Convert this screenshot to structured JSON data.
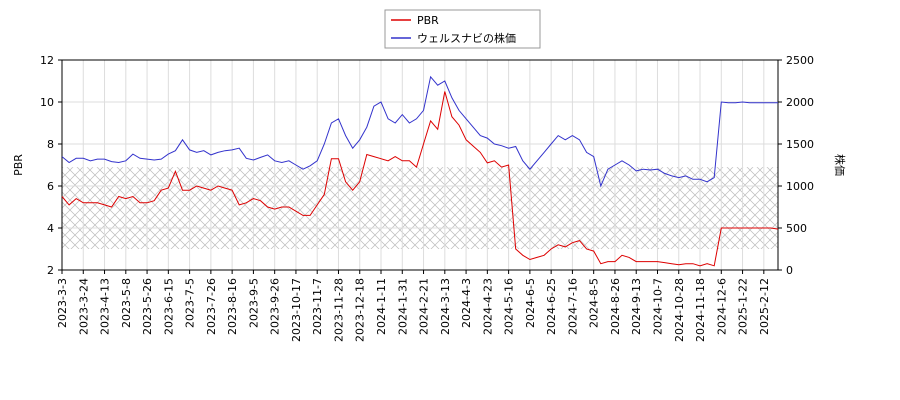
{
  "chart_data": {
    "type": "line",
    "xlim": [
      0,
      101
    ],
    "xticks": [
      {
        "value": 0,
        "label": "2023-3-3"
      },
      {
        "value": 3,
        "label": "2023-3-24"
      },
      {
        "value": 6,
        "label": "2023-4-13"
      },
      {
        "value": 9,
        "label": "2023-5-8"
      },
      {
        "value": 12,
        "label": "2023-5-26"
      },
      {
        "value": 15,
        "label": "2023-6-15"
      },
      {
        "value": 18,
        "label": "2023-7-5"
      },
      {
        "value": 21,
        "label": "2023-7-26"
      },
      {
        "value": 24,
        "label": "2023-8-16"
      },
      {
        "value": 27,
        "label": "2023-9-5"
      },
      {
        "value": 30,
        "label": "2023-9-26"
      },
      {
        "value": 33,
        "label": "2023-10-17"
      },
      {
        "value": 36,
        "label": "2023-11-7"
      },
      {
        "value": 39,
        "label": "2023-11-28"
      },
      {
        "value": 42,
        "label": "2023-12-18"
      },
      {
        "value": 45,
        "label": "2024-1-11"
      },
      {
        "value": 48,
        "label": "2024-1-31"
      },
      {
        "value": 51,
        "label": "2024-2-21"
      },
      {
        "value": 54,
        "label": "2024-3-13"
      },
      {
        "value": 57,
        "label": "2024-4-3"
      },
      {
        "value": 60,
        "label": "2024-4-23"
      },
      {
        "value": 63,
        "label": "2024-5-16"
      },
      {
        "value": 66,
        "label": "2024-6-5"
      },
      {
        "value": 69,
        "label": "2024-6-25"
      },
      {
        "value": 72,
        "label": "2024-7-16"
      },
      {
        "value": 75,
        "label": "2024-8-5"
      },
      {
        "value": 78,
        "label": "2024-8-26"
      },
      {
        "value": 81,
        "label": "2024-9-13"
      },
      {
        "value": 84,
        "label": "2024-10-7"
      },
      {
        "value": 87,
        "label": "2024-10-28"
      },
      {
        "value": 90,
        "label": "2024-11-18"
      },
      {
        "value": 93,
        "label": "2024-12-6"
      },
      {
        "value": 96,
        "label": "2025-1-22"
      },
      {
        "value": 99,
        "label": "2025-2-12"
      }
    ],
    "ylabel": "PBR",
    "y2label": "株価",
    "ylim": [
      2,
      12
    ],
    "yticks": [
      2,
      4,
      6,
      8,
      10,
      12
    ],
    "y2lim": [
      0,
      2500
    ],
    "y2ticks": [
      0,
      500,
      1000,
      1500,
      2000,
      2500
    ],
    "grid": true,
    "legend": "top",
    "shaded_range": [
      3,
      6.9
    ],
    "series": [
      {
        "name": "PBR",
        "color": "#dd0000",
        "values": [
          5.5,
          5.1,
          5.4,
          5.2,
          5.2,
          5.2,
          5.1,
          5.0,
          5.5,
          5.4,
          5.5,
          5.2,
          5.2,
          5.3,
          5.8,
          5.9,
          6.7,
          5.8,
          5.8,
          6.0,
          5.9,
          5.8,
          6.0,
          5.9,
          5.8,
          5.1,
          5.2,
          5.4,
          5.3,
          5.0,
          4.9,
          5.0,
          5.0,
          4.8,
          4.6,
          4.6,
          5.1,
          5.6,
          7.3,
          7.3,
          6.2,
          5.8,
          6.2,
          7.5,
          7.4,
          7.3,
          7.2,
          7.4,
          7.2,
          7.2,
          6.9,
          8.0,
          9.1,
          8.7,
          10.5,
          9.3,
          8.9,
          8.2,
          7.9,
          7.6,
          7.1,
          7.2,
          6.9,
          7.0,
          3.0,
          2.7,
          2.5,
          2.6,
          2.7,
          3.0,
          3.2,
          3.1,
          3.3,
          3.4,
          3.0,
          2.9,
          2.3,
          2.4,
          2.4,
          2.7,
          2.6,
          2.4,
          2.4,
          2.4,
          2.4,
          2.35,
          2.3,
          2.25,
          2.3,
          2.3,
          2.2,
          2.3,
          2.2,
          4.0,
          4.0,
          4.0,
          4.0,
          4.0,
          4.0,
          4.0,
          4.0,
          3.95
        ]
      },
      {
        "name": "ウェルスナビの株価",
        "color": "#3333cc",
        "axis": "y2",
        "values": [
          1350,
          1280,
          1330,
          1330,
          1300,
          1320,
          1320,
          1290,
          1280,
          1300,
          1380,
          1330,
          1320,
          1310,
          1320,
          1380,
          1420,
          1550,
          1430,
          1400,
          1420,
          1370,
          1400,
          1420,
          1430,
          1450,
          1330,
          1310,
          1340,
          1370,
          1300,
          1280,
          1300,
          1250,
          1200,
          1240,
          1300,
          1500,
          1750,
          1800,
          1600,
          1450,
          1550,
          1700,
          1950,
          2000,
          1800,
          1750,
          1850,
          1750,
          1800,
          1900,
          2300,
          2200,
          2250,
          2050,
          1900,
          1800,
          1700,
          1600,
          1570,
          1500,
          1480,
          1450,
          1470,
          1300,
          1200,
          1300,
          1400,
          1500,
          1600,
          1550,
          1600,
          1550,
          1400,
          1350,
          1000,
          1200,
          1250,
          1300,
          1250,
          1180,
          1200,
          1190,
          1200,
          1150,
          1120,
          1100,
          1120,
          1080,
          1080,
          1050,
          1100,
          2000,
          1990,
          1990,
          2000,
          1990,
          1990,
          1990,
          1990,
          1990
        ]
      }
    ]
  }
}
